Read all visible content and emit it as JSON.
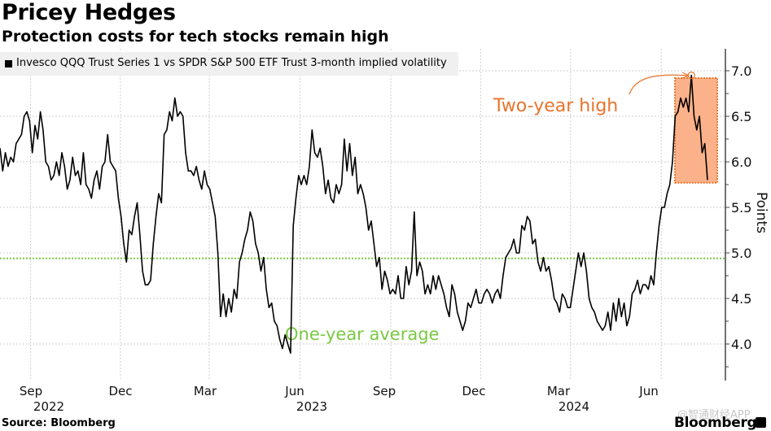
{
  "title": "Pricey Hedges",
  "subtitle": "Protection costs for tech stocks remain high",
  "legend": {
    "label": "Invesco QQQ Trust Series 1 vs SPDR S&P 500 ETF Trust 3-month implied volatility",
    "swatch_color": "#000000"
  },
  "source": "Source: Bloomberg",
  "brand": "Bloomberg",
  "watermark": "@智通财经APP",
  "chart_data": {
    "type": "line",
    "title": "Pricey Hedges",
    "subtitle": "Protection costs for tech stocks remain high",
    "ylabel": "Points",
    "xlabel": "",
    "ylim": [
      3.6,
      7.3
    ],
    "yticks": [
      4.0,
      4.5,
      5.0,
      5.5,
      6.0,
      6.5,
      7.0
    ],
    "ytick_labels": [
      "4.0",
      "4.5",
      "5.0",
      "5.5",
      "6.0",
      "6.5",
      "7.0"
    ],
    "xlim": [
      "2022-08-01",
      "2024-08-05"
    ],
    "xticks": [
      {
        "label": "Sep",
        "year": "2022",
        "date": "2022-09-01"
      },
      {
        "label": "Dec",
        "year": "",
        "date": "2022-12-01"
      },
      {
        "label": "Mar",
        "year": "",
        "date": "2023-03-01"
      },
      {
        "label": "Jun",
        "year": "2023",
        "date": "2023-06-01"
      },
      {
        "label": "Sep",
        "year": "",
        "date": "2023-09-01"
      },
      {
        "label": "Dec",
        "year": "",
        "date": "2023-12-01"
      },
      {
        "label": "Mar",
        "year": "2024",
        "date": "2024-03-01"
      },
      {
        "label": "Jun",
        "year": "",
        "date": "2024-06-01"
      }
    ],
    "grid": true,
    "legend_position": "top-left",
    "series": [
      {
        "name": "Invesco QQQ Trust Series 1 vs SPDR S&P 500 ETF Trust 3-month implied volatility",
        "color": "#000000",
        "values": [
          6.15,
          5.9,
          6.1,
          5.95,
          6.05,
          6.0,
          6.2,
          6.25,
          6.3,
          6.5,
          6.55,
          6.45,
          6.1,
          6.4,
          6.25,
          6.55,
          6.35,
          6.0,
          5.95,
          5.8,
          5.85,
          6.0,
          5.85,
          6.1,
          5.95,
          5.7,
          5.8,
          6.05,
          5.85,
          5.9,
          5.75,
          6.1,
          5.75,
          5.7,
          5.6,
          5.8,
          5.9,
          5.7,
          5.95,
          6.0,
          6.3,
          6.0,
          5.95,
          5.9,
          5.6,
          5.4,
          5.1,
          4.9,
          5.25,
          5.2,
          5.4,
          5.55,
          5.2,
          4.8,
          4.65,
          4.65,
          4.7,
          5.1,
          5.4,
          5.65,
          5.55,
          6.3,
          6.35,
          6.55,
          6.45,
          6.7,
          6.5,
          6.55,
          6.5,
          6.1,
          5.9,
          5.9,
          5.85,
          5.95,
          5.8,
          5.7,
          5.9,
          5.75,
          5.7,
          5.55,
          5.4,
          5.0,
          4.3,
          4.55,
          4.3,
          4.5,
          4.35,
          4.6,
          4.5,
          4.9,
          5.0,
          5.15,
          5.25,
          5.45,
          5.35,
          5.1,
          5.0,
          4.8,
          4.95,
          4.6,
          4.4,
          4.45,
          4.25,
          4.2,
          4.05,
          3.95,
          4.1,
          4.0,
          3.9,
          5.3,
          5.6,
          5.85,
          5.75,
          5.85,
          5.75,
          5.95,
          6.35,
          6.1,
          6.05,
          6.15,
          5.95,
          5.65,
          5.8,
          5.6,
          5.55,
          5.75,
          5.65,
          5.75,
          6.25,
          5.9,
          6.2,
          5.85,
          6.05,
          5.65,
          5.75,
          5.65,
          5.5,
          5.25,
          5.35,
          5.1,
          4.85,
          4.95,
          4.6,
          4.8,
          4.7,
          4.55,
          4.6,
          4.55,
          4.75,
          4.5,
          4.5,
          4.85,
          4.65,
          4.8,
          5.45,
          4.75,
          4.9,
          4.8,
          4.55,
          4.65,
          4.55,
          4.75,
          4.6,
          4.75,
          4.65,
          4.55,
          4.4,
          4.3,
          4.65,
          4.55,
          4.35,
          4.25,
          4.15,
          4.25,
          4.45,
          4.4,
          4.5,
          4.6,
          4.45,
          4.45,
          4.55,
          4.6,
          4.55,
          4.45,
          4.55,
          4.6,
          4.5,
          4.75,
          4.95,
          5.0,
          5.05,
          5.15,
          5.0,
          5.0,
          5.3,
          5.25,
          5.4,
          5.35,
          5.1,
          5.15,
          4.9,
          4.8,
          4.95,
          4.8,
          4.85,
          4.7,
          4.5,
          4.45,
          4.35,
          4.55,
          4.5,
          4.4,
          4.4,
          4.6,
          4.8,
          5.0,
          4.85,
          5.0,
          4.8,
          4.5,
          4.4,
          4.35,
          4.25,
          4.2,
          4.15,
          4.2,
          4.35,
          4.15,
          4.45,
          4.25,
          4.5,
          4.3,
          4.45,
          4.2,
          4.3,
          4.55,
          4.6,
          4.7,
          4.55,
          4.65,
          4.65,
          4.6,
          4.75,
          4.65,
          5.0,
          5.3,
          5.5,
          5.5,
          5.65,
          5.75,
          6.0,
          6.5,
          6.55,
          6.7,
          6.6,
          6.7,
          6.55,
          6.95,
          6.5,
          6.35,
          6.5,
          6.1,
          6.2,
          5.8
        ]
      }
    ],
    "reference_lines": [
      {
        "label": "One-year average",
        "value": 4.94,
        "color": "#7ac943",
        "style": "dotted"
      }
    ],
    "annotations": [
      {
        "label": "Two-year high",
        "color": "#e8742c",
        "target_value": 6.95,
        "type": "highlight-box",
        "box_range": [
          5.77,
          6.92
        ],
        "fill": "#fbb28a"
      }
    ]
  }
}
